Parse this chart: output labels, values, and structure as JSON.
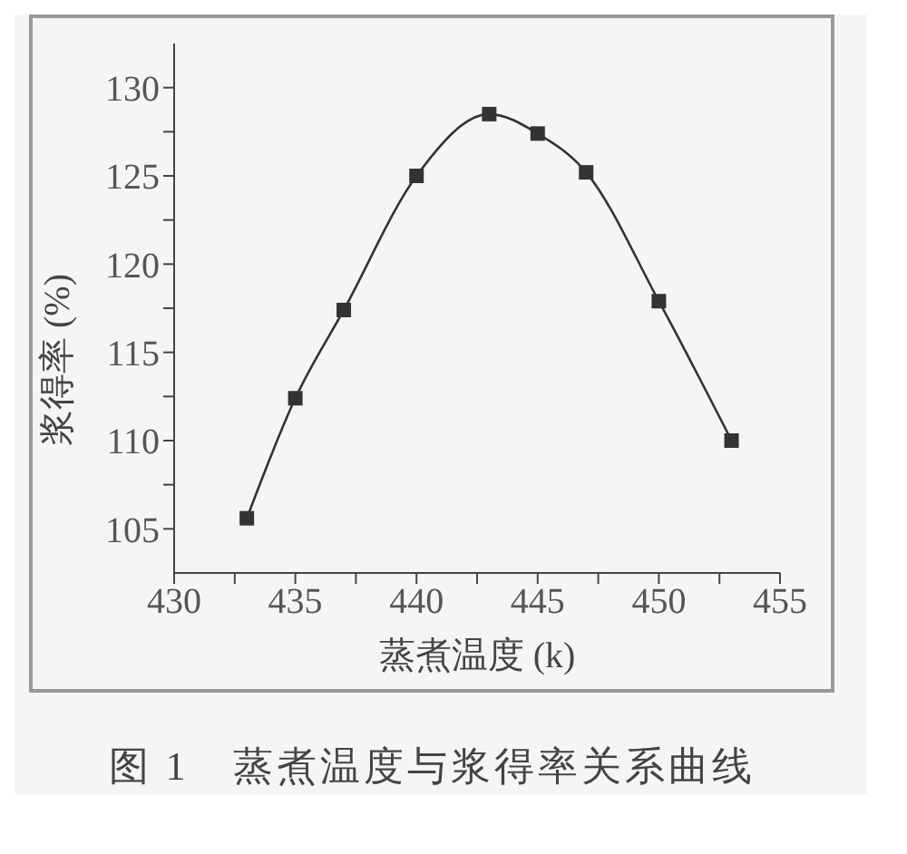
{
  "chart_data": {
    "type": "line",
    "title": "图 1　蒸煮温度与浆得率关系曲线",
    "xlabel": "蒸煮温度 (k)",
    "ylabel": "浆得率 (%)",
    "x": [
      433,
      435,
      437,
      440,
      443,
      445,
      447,
      450,
      453
    ],
    "series": [
      {
        "color": "#333333",
        "values": [
          105.6,
          112.4,
          117.4,
          125.0,
          128.5,
          127.4,
          125.2,
          117.9,
          110.0
        ]
      }
    ],
    "xlim": [
      430,
      455
    ],
    "xticks": [
      430,
      {
        "value": 432.5,
        "label": null
      },
      435,
      {
        "value": 437.5,
        "label": null
      },
      440,
      {
        "value": 442.5,
        "label": null
      },
      445,
      {
        "value": 447.5,
        "label": null
      },
      450,
      {
        "value": 452.5,
        "label": null
      },
      455
    ],
    "ylim": [
      102.5,
      132.5
    ],
    "yticks": [
      105,
      {
        "value": 107.5,
        "label": null
      },
      110,
      {
        "value": 112.5,
        "label": null
      },
      115,
      {
        "value": 117.5,
        "label": null
      },
      120,
      {
        "value": 122.5,
        "label": null
      },
      125,
      {
        "value": 127.5,
        "label": null
      },
      130
    ],
    "marker": "square",
    "line_style": "solid",
    "grid": false,
    "legend": false
  }
}
